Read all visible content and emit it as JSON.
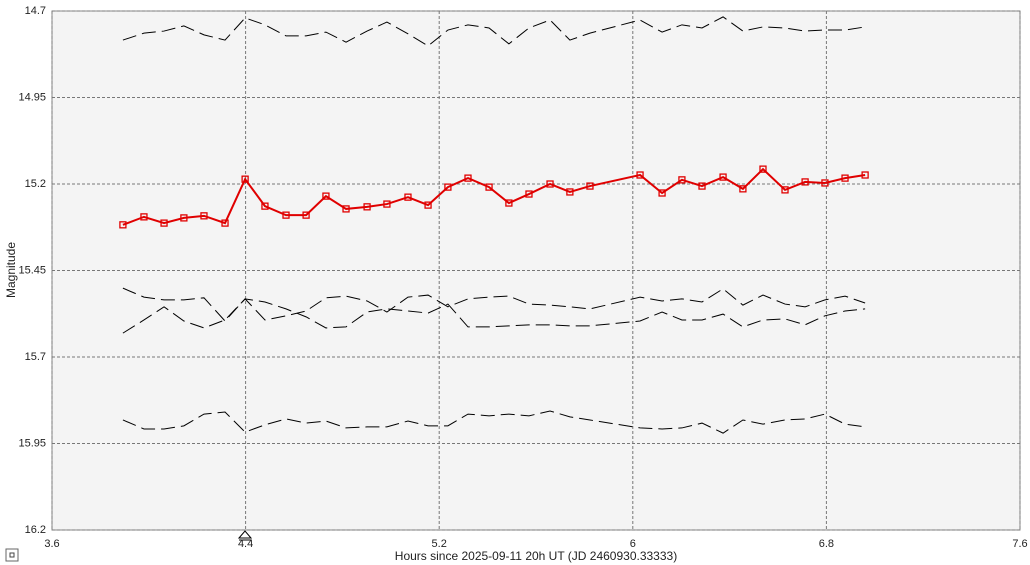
{
  "chart_data": {
    "type": "line",
    "x_label": "Hours since 2025-09-11 20h UT (JD 2460930.33333)",
    "y_label": "Magnitude",
    "x": [
      3.893,
      3.98,
      4.063,
      4.145,
      4.228,
      4.315,
      4.398,
      4.48,
      4.567,
      4.65,
      4.732,
      4.815,
      4.902,
      4.984,
      5.071,
      5.154,
      5.236,
      5.319,
      5.406,
      5.488,
      5.571,
      5.658,
      5.74,
      5.823,
      6.03,
      6.121,
      6.203,
      6.286,
      6.373,
      6.455,
      6.538,
      6.629,
      6.712,
      6.794,
      6.877,
      6.96
    ],
    "series": [
      {
        "color": "#e00000",
        "marker": "square",
        "dashed": false,
        "values": [
          15.318,
          15.295,
          15.313,
          15.298,
          15.292,
          15.313,
          15.186,
          15.264,
          15.29,
          15.29,
          15.235,
          15.272,
          15.266,
          15.258,
          15.238,
          15.261,
          15.209,
          15.183,
          15.209,
          15.255,
          15.229,
          15.2,
          15.223,
          15.206,
          15.174,
          15.226,
          15.188,
          15.206,
          15.18,
          15.214,
          15.157,
          15.217,
          15.194,
          15.197,
          15.183,
          15.174
        ]
      },
      {
        "color": "#000000",
        "dashed": true,
        "values": [
          14.784,
          14.764,
          14.758,
          14.743,
          14.769,
          14.784,
          14.72,
          14.74,
          14.772,
          14.772,
          14.761,
          14.79,
          14.758,
          14.732,
          14.766,
          14.801,
          14.755,
          14.74,
          14.749,
          14.795,
          14.749,
          14.726,
          14.784,
          14.764,
          14.726,
          14.761,
          14.74,
          14.749,
          14.717,
          14.758,
          14.746,
          14.749,
          14.758,
          14.755,
          14.755,
          14.746
        ]
      },
      {
        "color": "#000000",
        "dashed": true,
        "values": [
          15.501,
          15.527,
          15.535,
          15.535,
          15.529,
          15.596,
          15.532,
          15.593,
          15.581,
          15.567,
          15.529,
          15.524,
          15.538,
          15.57,
          15.527,
          15.521,
          15.555,
          15.532,
          15.527,
          15.524,
          15.547,
          15.55,
          15.555,
          15.561,
          15.527,
          15.538,
          15.532,
          15.541,
          15.503,
          15.55,
          15.521,
          15.547,
          15.555,
          15.535,
          15.524,
          15.544
        ]
      },
      {
        "color": "#000000",
        "dashed": true,
        "values": [
          15.631,
          15.593,
          15.555,
          15.596,
          15.616,
          15.593,
          15.532,
          15.541,
          15.561,
          15.584,
          15.616,
          15.613,
          15.57,
          15.561,
          15.567,
          15.573,
          15.547,
          15.613,
          15.613,
          15.61,
          15.607,
          15.607,
          15.61,
          15.61,
          15.596,
          15.57,
          15.593,
          15.593,
          15.576,
          15.613,
          15.593,
          15.59,
          15.607,
          15.581,
          15.567,
          15.561
        ]
      },
      {
        "color": "#000000",
        "dashed": true,
        "values": [
          15.882,
          15.908,
          15.908,
          15.899,
          15.865,
          15.859,
          15.917,
          15.896,
          15.879,
          15.891,
          15.885,
          15.905,
          15.902,
          15.902,
          15.885,
          15.899,
          15.899,
          15.865,
          15.87,
          15.865,
          15.87,
          15.856,
          15.873,
          15.882,
          15.905,
          15.908,
          15.905,
          15.891,
          15.92,
          15.882,
          15.894,
          15.882,
          15.879,
          15.865,
          15.894,
          15.902
        ]
      }
    ],
    "xlim": [
      3.6,
      7.6
    ],
    "xticks": [
      3.6,
      4.4,
      5.2,
      6,
      6.8,
      7.6
    ],
    "ylim": [
      14.7,
      16.2
    ],
    "yticks": [
      14.7,
      14.95,
      15.2,
      15.45,
      15.7,
      15.95,
      16.2
    ],
    "y_inverted": true,
    "grid": true
  }
}
